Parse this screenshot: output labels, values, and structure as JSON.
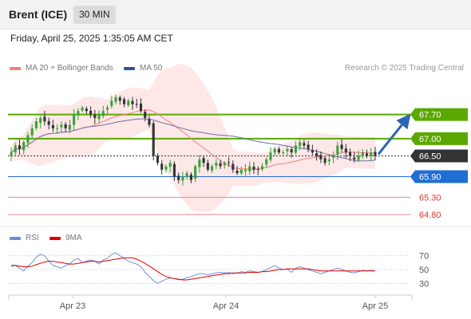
{
  "header": {
    "title": "Brent (ICE)",
    "interval": "30 MIN"
  },
  "datetime": "Friday, April 25, 2025 1:35:05 AM CET",
  "legend": {
    "items": [
      {
        "label": "MA 20 + Bollinger Bands",
        "color": "#f08080"
      },
      {
        "label": "MA 50",
        "color": "#2f5597"
      }
    ],
    "copyright": "Research © 2025 Trading Central"
  },
  "rsi_legend": {
    "items": [
      {
        "label": "RSI",
        "color": "#6b8fd8"
      },
      {
        "label": "9MA",
        "color": "#dd0000"
      }
    ]
  },
  "chart_data": [
    {
      "type": "candlestick",
      "x_labels": [
        "Apr 23",
        "Apr 24",
        "Apr 25"
      ],
      "levels": [
        {
          "value": 67.7,
          "label": "67.70",
          "kind": "resistance",
          "color": "#5aa800"
        },
        {
          "value": 67.0,
          "label": "67.00",
          "kind": "resistance",
          "color": "#5aa800"
        },
        {
          "value": 66.5,
          "label": "66.50",
          "kind": "last-price",
          "color": "#333333"
        },
        {
          "value": 65.9,
          "label": "65.90",
          "kind": "pivot",
          "color": "#1f6ed4"
        },
        {
          "value": 65.3,
          "label": "65.30",
          "kind": "support",
          "color": "#f08080"
        },
        {
          "value": 64.8,
          "label": "64.80",
          "kind": "support",
          "color": "#f08080"
        }
      ],
      "series": [
        {
          "name": "MA 20 + Bollinger Bands"
        },
        {
          "name": "MA 50"
        }
      ],
      "close": [
        66.6,
        66.8,
        66.7,
        66.9,
        67.1,
        67.3,
        67.5,
        67.6,
        67.5,
        67.4,
        67.3,
        67.3,
        67.4,
        67.3,
        67.4,
        67.7,
        67.8,
        67.9,
        67.8,
        67.7,
        67.6,
        67.7,
        67.8,
        67.9,
        68.1,
        68.2,
        68.1,
        68.0,
        68.1,
        68.0,
        68.0,
        67.8,
        67.6,
        67.4,
        66.5,
        66.3,
        66.1,
        66.2,
        66.3,
        65.9,
        65.8,
        65.9,
        66.0,
        65.8,
        66.2,
        66.4,
        66.3,
        66.1,
        66.2,
        66.3,
        66.2,
        66.3,
        66.3,
        66.1,
        66.0,
        66.1,
        66.1,
        66.2,
        66.1,
        66.1,
        66.2,
        66.4,
        66.6,
        66.7,
        66.6,
        66.6,
        66.7,
        66.6,
        66.8,
        66.9,
        66.8,
        66.7,
        66.6,
        66.5,
        66.4,
        66.3,
        66.4,
        66.5,
        66.8,
        66.7,
        66.6,
        66.5,
        66.4,
        66.5,
        66.6,
        66.5,
        66.6,
        66.5
      ],
      "ylim": [
        64.5,
        68.8
      ]
    },
    {
      "type": "line",
      "title": "RSI",
      "series": [
        {
          "name": "RSI",
          "values": [
            54,
            56,
            52,
            48,
            55,
            60,
            68,
            72,
            70,
            62,
            56,
            54,
            52,
            56,
            58,
            64,
            66,
            60,
            62,
            64,
            62,
            58,
            64,
            66,
            72,
            74,
            70,
            66,
            62,
            60,
            58,
            54,
            46,
            40,
            34,
            30,
            33,
            36,
            38,
            37,
            35,
            36,
            38,
            40,
            42,
            44,
            44,
            42,
            44,
            45,
            46,
            45,
            46,
            44,
            45,
            47,
            46,
            48,
            47,
            46,
            47,
            50,
            53,
            56,
            52,
            50,
            51,
            46,
            52,
            54,
            52,
            50,
            48,
            46,
            44,
            46,
            48,
            50,
            52,
            50,
            48,
            46,
            45,
            47,
            49,
            48,
            49,
            48
          ]
        },
        {
          "name": "9MA",
          "values": [
            56,
            56,
            55,
            54,
            54,
            55,
            57,
            59,
            61,
            62,
            62,
            61,
            60,
            59,
            58,
            58,
            59,
            60,
            61,
            62,
            62,
            61,
            62,
            63,
            64,
            65,
            66,
            67,
            67,
            67,
            65,
            62,
            59,
            55,
            51,
            47,
            43,
            40,
            38,
            37,
            36,
            35,
            35,
            36,
            37,
            38,
            39,
            40,
            41,
            42,
            43,
            44,
            44,
            45,
            45,
            45,
            45,
            46,
            46,
            46,
            47,
            47,
            48,
            49,
            50,
            50,
            51,
            51,
            51,
            51,
            51,
            51,
            50,
            49,
            48,
            48,
            48,
            48,
            48,
            48,
            48,
            48,
            48,
            48,
            48,
            48,
            48,
            48
          ]
        }
      ],
      "y_ticks": [
        70,
        50,
        30
      ],
      "ylim": [
        20,
        80
      ]
    }
  ]
}
